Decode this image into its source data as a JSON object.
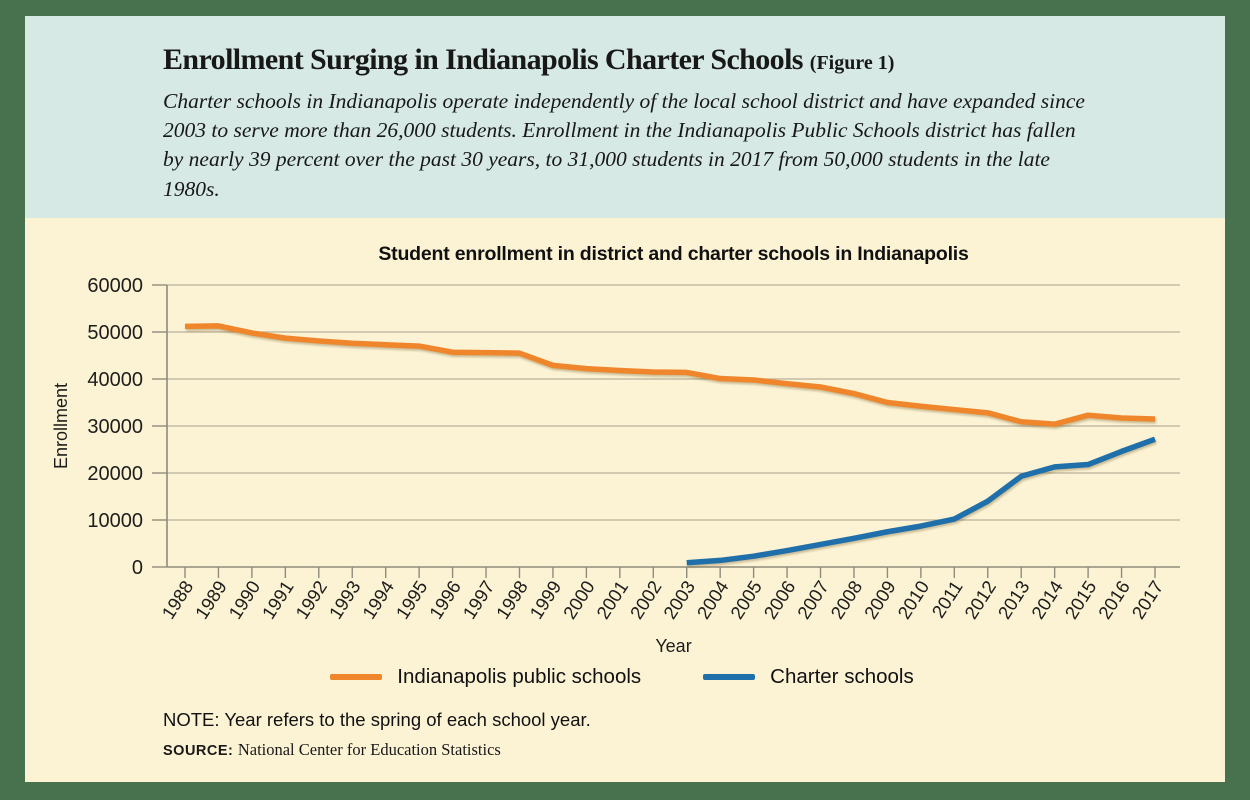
{
  "header": {
    "title": "Enrollment Surging in Indianapolis Charter Schools",
    "figure_label": "(Figure 1)",
    "subtitle": "Charter schools in Indianapolis operate independently of the local school district and have expanded since 2003 to serve more than 26,000 students. Enrollment in the Indianapolis Public Schools district has fallen by nearly 39 percent over the past 30 years, to 31,000 students in 2017 from 50,000 students in the late 1980s."
  },
  "chart_data": {
    "type": "line",
    "title": "Student enrollment in district and charter schools in Indianapolis",
    "xlabel": "Year",
    "ylabel": "Enrollment",
    "ylim": [
      0,
      60000
    ],
    "yticks": [
      0,
      10000,
      20000,
      30000,
      40000,
      50000,
      60000
    ],
    "grid": true,
    "legend_position": "bottom",
    "x": [
      1988,
      1989,
      1990,
      1991,
      1992,
      1993,
      1994,
      1995,
      1996,
      1997,
      1998,
      1999,
      2000,
      2001,
      2002,
      2003,
      2004,
      2005,
      2006,
      2007,
      2008,
      2009,
      2010,
      2011,
      2012,
      2013,
      2014,
      2015,
      2016,
      2017
    ],
    "series": [
      {
        "name": "Indianapolis public schools",
        "color": "#f0862b",
        "values": [
          51200,
          51300,
          49800,
          48700,
          48100,
          47600,
          47300,
          47000,
          45700,
          45600,
          45500,
          42900,
          42200,
          41800,
          41500,
          41400,
          40100,
          39800,
          39000,
          38300,
          36900,
          35000,
          34200,
          33500,
          32800,
          30900,
          30400,
          32300,
          31700,
          31500
        ]
      },
      {
        "name": "Charter schools",
        "color": "#1f6fab",
        "values": [
          null,
          null,
          null,
          null,
          null,
          null,
          null,
          null,
          null,
          null,
          null,
          null,
          null,
          null,
          null,
          900,
          1400,
          2300,
          3500,
          4800,
          6100,
          7500,
          8700,
          10200,
          14000,
          19300,
          21300,
          21800,
          24600,
          27200
        ]
      }
    ]
  },
  "footer": {
    "note_label": "NOTE:",
    "note": "Year refers to the spring of each school year.",
    "source_label": "SOURCE:",
    "source": "National Center for Education Statistics"
  },
  "colors": {
    "frame_green": "#48714d",
    "header_bg": "#d6e9e4",
    "body_bg": "#fcf3d5",
    "grid": "#b8b19a",
    "axis": "#8f8c7c",
    "text": "#1a1a1a",
    "ips_orange": "#f0862b",
    "charter_blue": "#1f6fab"
  }
}
